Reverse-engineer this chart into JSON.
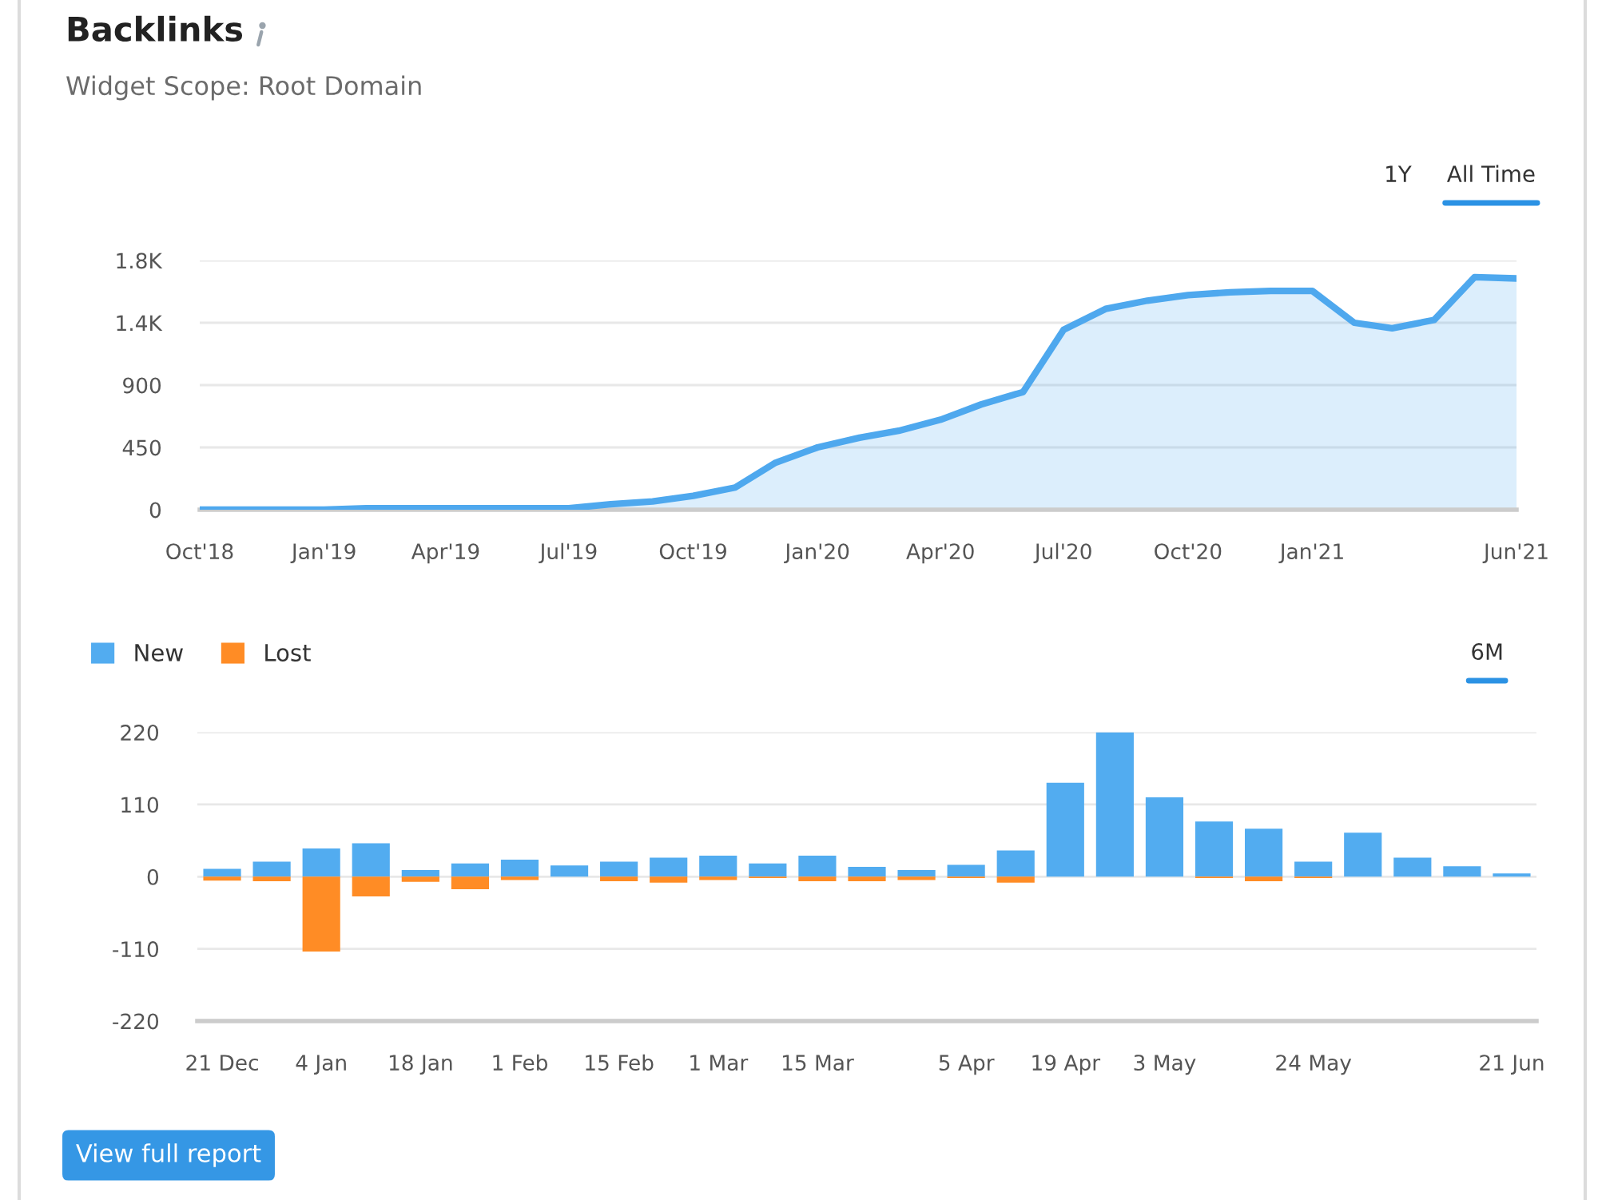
{
  "chart_data": [
    {
      "type": "area",
      "title": "Backlinks",
      "subtitle": "Widget Scope: Root Domain",
      "x": [
        "2018-10",
        "2018-11",
        "2018-12",
        "2019-01",
        "2019-02",
        "2019-03",
        "2019-04",
        "2019-05",
        "2019-06",
        "2019-07",
        "2019-08",
        "2019-09",
        "2019-10",
        "2019-11",
        "2019-12",
        "2020-01",
        "2020-02",
        "2020-03",
        "2020-04",
        "2020-05",
        "2020-06",
        "2020-07",
        "2020-08",
        "2020-09",
        "2020-10",
        "2020-11",
        "2020-12",
        "2021-01",
        "2021-02",
        "2021-03",
        "2021-04",
        "2021-05",
        "2021-06"
      ],
      "values": [
        0,
        0,
        0,
        0,
        10,
        10,
        10,
        10,
        10,
        10,
        40,
        60,
        100,
        160,
        340,
        450,
        520,
        570,
        650,
        760,
        850,
        1300,
        1450,
        1510,
        1550,
        1570,
        1580,
        1580,
        1350,
        1310,
        1370,
        1680,
        1670
      ],
      "color": "#4ea8ee",
      "xlim": [
        "2018-10",
        "2021-06"
      ],
      "xticks": [
        {
          "value": "2018-10",
          "label": "Oct'18"
        },
        {
          "value": "2019-01",
          "label": "Jan'19"
        },
        {
          "value": "2019-04",
          "label": "Apr'19"
        },
        {
          "value": "2019-07",
          "label": "Jul'19"
        },
        {
          "value": "2019-10",
          "label": "Oct'19"
        },
        {
          "value": "2020-01",
          "label": "Jan'20"
        },
        {
          "value": "2020-04",
          "label": "Apr'20"
        },
        {
          "value": "2020-07",
          "label": "Jul'20"
        },
        {
          "value": "2020-10",
          "label": "Oct'20"
        },
        {
          "value": "2021-01",
          "label": "Jan'21"
        },
        {
          "value": "2021-06",
          "label": "Jun'21"
        }
      ],
      "ylim": [
        0,
        1800
      ],
      "yticks": [
        0,
        450,
        900,
        {
          "value": 1350,
          "label": "1.4K"
        },
        {
          "value": 1800,
          "label": "1.8K"
        }
      ],
      "grid": "y",
      "annotations": [
        "1Y",
        "All Time"
      ]
    },
    {
      "type": "bar",
      "stacked": true,
      "categories": [
        "21 Dec",
        null,
        "4 Jan",
        null,
        "18 Jan",
        null,
        "1 Feb",
        null,
        "15 Feb",
        null,
        "1 Mar",
        null,
        "15 Mar",
        null,
        null,
        "5 Apr",
        null,
        "19 Apr",
        null,
        "3 May",
        null,
        null,
        "24 May",
        null,
        null,
        null,
        "21 Jun"
      ],
      "series": [
        {
          "name": "New",
          "color": "#52acf0",
          "values": [
            12,
            23,
            43,
            51,
            10,
            20,
            26,
            17,
            23,
            29,
            32,
            20,
            32,
            15,
            10,
            18,
            40,
            143,
            220,
            121,
            84,
            73,
            23,
            67,
            29,
            16,
            5
          ]
        },
        {
          "name": "Lost",
          "color": "#ff8c25",
          "values": [
            -6,
            -7,
            -114,
            -30,
            -8,
            -19,
            -5,
            null,
            -7,
            -9,
            -5,
            -2,
            -7,
            -7,
            -5,
            -2,
            -9,
            null,
            null,
            null,
            -2,
            -7,
            -2,
            null,
            null,
            null,
            null
          ]
        }
      ],
      "ylim": [
        -220,
        220
      ],
      "yticks": [
        -220,
        -110,
        0,
        110,
        220
      ],
      "grid": "y",
      "legend": "top left",
      "annotations": [
        "6M",
        "View full report"
      ]
    }
  ]
}
